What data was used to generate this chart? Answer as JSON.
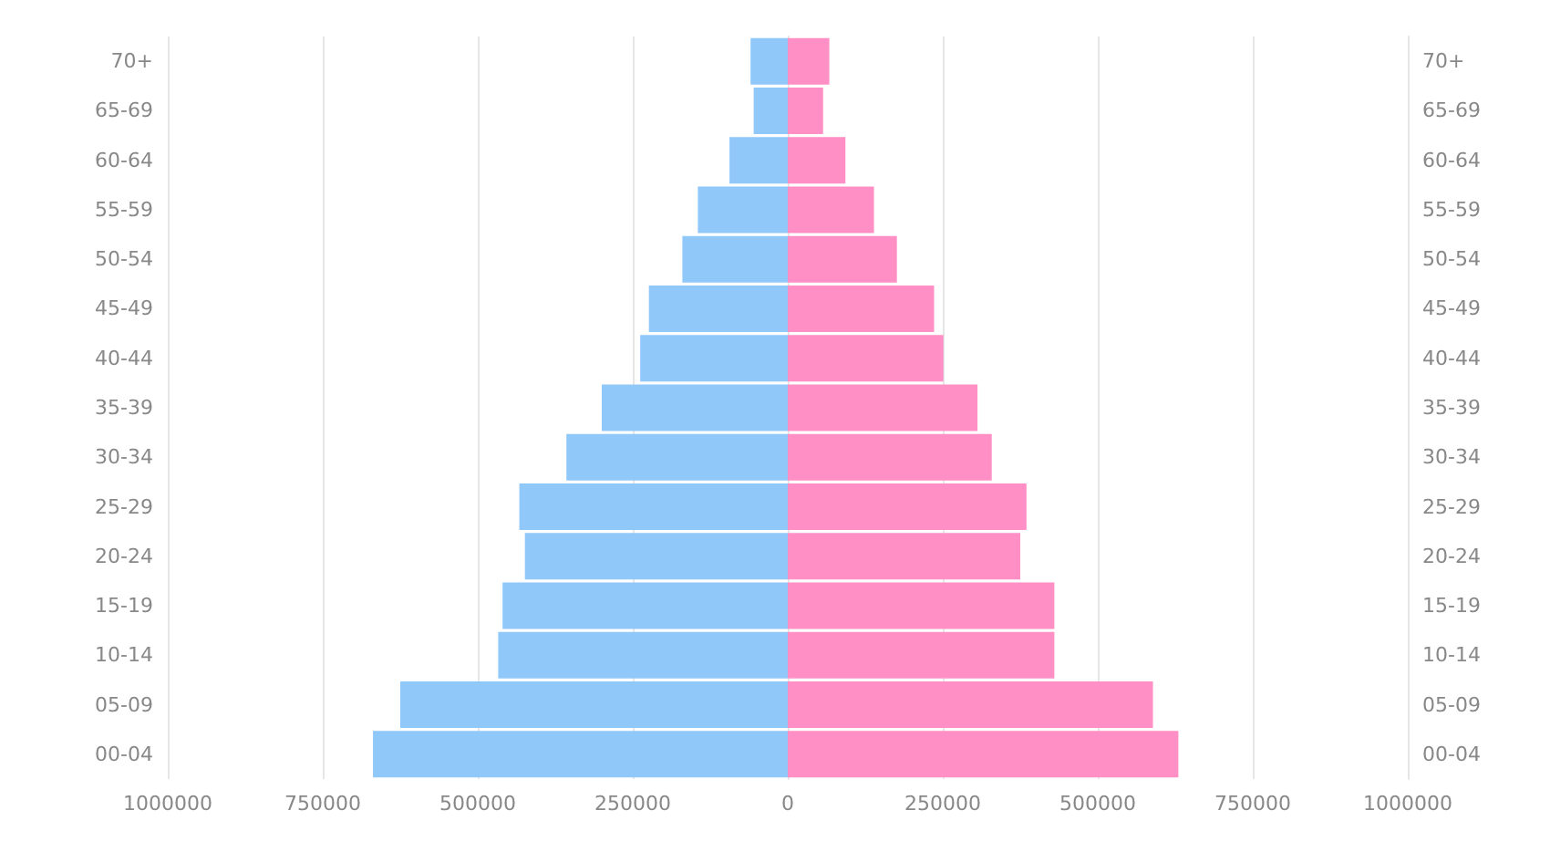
{
  "chart_data": {
    "type": "bar",
    "orientation": "horizontal",
    "stacked": true,
    "categories": [
      "70+",
      "65-69",
      "60-64",
      "55-59",
      "50-54",
      "45-49",
      "40-44",
      "35-39",
      "30-34",
      "25-29",
      "20-24",
      "15-19",
      "10-14",
      "05-09",
      "00-04"
    ],
    "series": [
      {
        "color": "#90c8fa",
        "values": [
          -60000,
          -55000,
          -94000,
          -145000,
          -170000,
          -224000,
          -238000,
          -300000,
          -357000,
          -433000,
          -424000,
          -460000,
          -467000,
          -625000,
          -669000
        ]
      },
      {
        "color": "#ff8fc4",
        "values": [
          67000,
          57000,
          93000,
          139000,
          176000,
          236000,
          251000,
          306000,
          329000,
          385000,
          375000,
          430000,
          430000,
          589000,
          630000
        ]
      }
    ],
    "xlim": [
      -1000000,
      1000000
    ],
    "xticks": [
      {
        "value": -1000000,
        "label": "1000000"
      },
      {
        "value": -750000,
        "label": "750000"
      },
      {
        "value": -500000,
        "label": "500000"
      },
      {
        "value": -250000,
        "label": "250000"
      },
      0,
      250000,
      500000,
      750000,
      1000000
    ],
    "grid": "x"
  }
}
